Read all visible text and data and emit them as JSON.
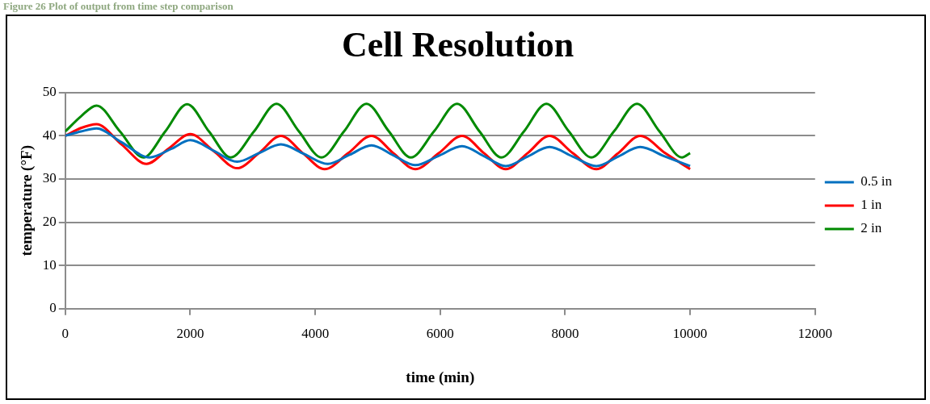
{
  "chart_data": {
    "type": "line",
    "title": "Cell Resolution",
    "xlabel": "time (min)",
    "ylabel": "temperature (°F)",
    "annotations": [
      "Figure 26 Plot of output from time step comparison"
    ],
    "xlim": [
      0,
      12000
    ],
    "xticks": [
      0,
      2000,
      4000,
      6000,
      8000,
      10000,
      12000
    ],
    "ylim": [
      0,
      50
    ],
    "yticks": [
      0,
      10,
      20,
      30,
      40,
      50
    ],
    "grid": "y",
    "legend": "right",
    "marker": "none",
    "line_style": "solid",
    "series": [
      {
        "name": "0.5 in",
        "color": "#0070c0",
        "x": [
          0,
          250,
          500,
          900,
          1350,
          1700,
          2000,
          2380,
          2750,
          3100,
          3450,
          3820,
          4200,
          4550,
          4900,
          5250,
          5600,
          5980,
          6350,
          6700,
          7050,
          7400,
          7750,
          8120,
          8500,
          8850,
          9200,
          9600,
          10000
        ],
        "values": [
          40,
          41,
          41.7,
          38.5,
          35,
          37,
          39,
          36.5,
          34,
          36,
          38,
          35.8,
          33.5,
          35.6,
          37.8,
          35.5,
          33.2,
          35.4,
          37.6,
          35.3,
          33,
          35.2,
          37.4,
          35.2,
          33,
          35.2,
          37.4,
          35.2,
          33
        ]
      },
      {
        "name": "1 in",
        "color": "#ff0000",
        "x": [
          0,
          250,
          500,
          900,
          1300,
          1650,
          2000,
          2370,
          2750,
          3100,
          3450,
          3800,
          4150,
          4530,
          4900,
          5250,
          5600,
          5980,
          6350,
          6700,
          7050,
          7400,
          7750,
          8120,
          8500,
          8850,
          9200,
          9600,
          10000
        ],
        "values": [
          40,
          41.8,
          42.7,
          38,
          33.5,
          37,
          40.4,
          36.5,
          32.5,
          36,
          40,
          36,
          32.3,
          36,
          40,
          36,
          32.3,
          36,
          40,
          36,
          32.3,
          36,
          40,
          36,
          32.3,
          36,
          40,
          36,
          32.3
        ]
      },
      {
        "name": "2 in",
        "color": "#008a00",
        "x": [
          0,
          250,
          500,
          875,
          1250,
          1600,
          1950,
          2300,
          2650,
          3020,
          3380,
          3740,
          4100,
          4460,
          4820,
          5180,
          5530,
          5900,
          6270,
          6630,
          6980,
          7340,
          7700,
          8060,
          8420,
          8780,
          9150,
          9510,
          9870,
          10000
        ],
        "values": [
          41,
          44.5,
          47,
          41,
          35,
          41,
          47.3,
          41,
          35,
          41,
          47.4,
          41,
          35,
          41,
          47.4,
          41,
          35,
          41,
          47.4,
          41,
          35,
          41,
          47.4,
          41,
          35,
          41,
          47.4,
          41,
          35,
          36
        ]
      }
    ]
  }
}
